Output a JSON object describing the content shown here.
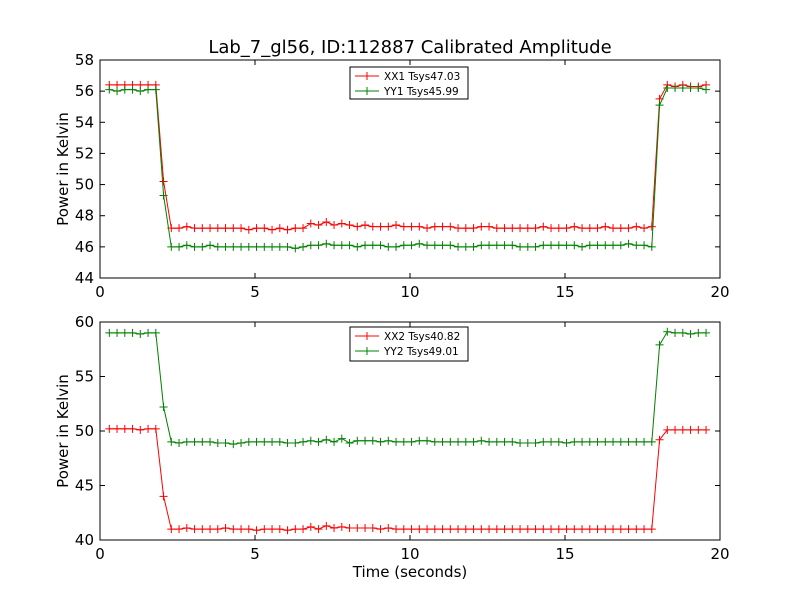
{
  "title": "Lab_7_gl56, ID:112887 Calibrated Amplitude",
  "xlabel": "Time (seconds)",
  "chart_data": [
    {
      "type": "line",
      "title": "Lab_7_gl56, ID:112887 Calibrated Amplitude",
      "xlabel": "",
      "ylabel": "Power in Kelvin",
      "xlim": [
        0,
        20
      ],
      "ylim": [
        44,
        58
      ],
      "xticks": [
        0,
        5,
        10,
        15,
        20
      ],
      "yticks": [
        44,
        46,
        48,
        50,
        52,
        54,
        56,
        58
      ],
      "grid": false,
      "legend": "top-center",
      "x": [
        0.3,
        0.55,
        0.8,
        1.05,
        1.3,
        1.55,
        1.8,
        2.05,
        2.3,
        2.55,
        2.8,
        3.05,
        3.3,
        3.55,
        3.8,
        4.05,
        4.3,
        4.55,
        4.8,
        5.05,
        5.3,
        5.55,
        5.8,
        6.05,
        6.3,
        6.55,
        6.8,
        7.05,
        7.3,
        7.55,
        7.8,
        8.05,
        8.3,
        8.55,
        8.8,
        9.05,
        9.3,
        9.55,
        9.8,
        10.05,
        10.3,
        10.55,
        10.8,
        11.05,
        11.3,
        11.55,
        11.8,
        12.05,
        12.3,
        12.55,
        12.8,
        13.05,
        13.3,
        13.55,
        13.8,
        14.05,
        14.3,
        14.55,
        14.8,
        15.05,
        15.3,
        15.55,
        15.8,
        16.05,
        16.3,
        16.55,
        16.8,
        17.05,
        17.3,
        17.55,
        17.8,
        18.05,
        18.3,
        18.55,
        18.8,
        19.05,
        19.3,
        19.55
      ],
      "series": [
        {
          "name": "XX1 Tsys47.03",
          "color": "#ff0000",
          "values": [
            56.4,
            56.4,
            56.4,
            56.4,
            56.4,
            56.4,
            56.4,
            50.2,
            47.2,
            47.2,
            47.3,
            47.2,
            47.2,
            47.2,
            47.2,
            47.2,
            47.2,
            47.2,
            47.1,
            47.2,
            47.2,
            47.1,
            47.2,
            47.1,
            47.2,
            47.2,
            47.5,
            47.4,
            47.6,
            47.4,
            47.5,
            47.4,
            47.3,
            47.4,
            47.3,
            47.3,
            47.3,
            47.4,
            47.3,
            47.3,
            47.3,
            47.2,
            47.3,
            47.3,
            47.3,
            47.2,
            47.2,
            47.2,
            47.3,
            47.3,
            47.2,
            47.2,
            47.2,
            47.2,
            47.2,
            47.2,
            47.3,
            47.2,
            47.2,
            47.2,
            47.3,
            47.2,
            47.2,
            47.2,
            47.3,
            47.2,
            47.2,
            47.2,
            47.3,
            47.2,
            47.3,
            55.5,
            56.4,
            56.3,
            56.4,
            56.3,
            56.3,
            56.4
          ]
        },
        {
          "name": "YY1 Tsys45.99",
          "color": "#008000",
          "values": [
            56.1,
            56.0,
            56.1,
            56.1,
            56.0,
            56.1,
            56.1,
            49.3,
            46.0,
            46.0,
            46.1,
            46.0,
            46.0,
            46.1,
            46.0,
            46.0,
            46.0,
            46.0,
            46.0,
            46.0,
            46.0,
            46.0,
            46.0,
            46.0,
            45.9,
            46.0,
            46.1,
            46.1,
            46.2,
            46.1,
            46.1,
            46.1,
            46.0,
            46.1,
            46.1,
            46.1,
            46.0,
            46.0,
            46.1,
            46.1,
            46.2,
            46.1,
            46.1,
            46.1,
            46.1,
            46.0,
            46.0,
            46.0,
            46.1,
            46.1,
            46.1,
            46.1,
            46.1,
            46.0,
            46.0,
            46.0,
            46.1,
            46.1,
            46.1,
            46.1,
            46.1,
            46.0,
            46.1,
            46.1,
            46.1,
            46.1,
            46.1,
            46.2,
            46.1,
            46.1,
            46.0,
            55.1,
            56.2,
            56.2,
            56.2,
            56.2,
            56.2,
            56.1
          ]
        }
      ]
    },
    {
      "type": "line",
      "title": "",
      "xlabel": "Time (seconds)",
      "ylabel": "Power in Kelvin",
      "xlim": [
        0,
        20
      ],
      "ylim": [
        40,
        60
      ],
      "xticks": [
        0,
        5,
        10,
        15,
        20
      ],
      "yticks": [
        40,
        45,
        50,
        55,
        60
      ],
      "grid": false,
      "legend": "top-center",
      "x": [
        0.3,
        0.55,
        0.8,
        1.05,
        1.3,
        1.55,
        1.8,
        2.05,
        2.3,
        2.55,
        2.8,
        3.05,
        3.3,
        3.55,
        3.8,
        4.05,
        4.3,
        4.55,
        4.8,
        5.05,
        5.3,
        5.55,
        5.8,
        6.05,
        6.3,
        6.55,
        6.8,
        7.05,
        7.3,
        7.55,
        7.8,
        8.05,
        8.3,
        8.55,
        8.8,
        9.05,
        9.3,
        9.55,
        9.8,
        10.05,
        10.3,
        10.55,
        10.8,
        11.05,
        11.3,
        11.55,
        11.8,
        12.05,
        12.3,
        12.55,
        12.8,
        13.05,
        13.3,
        13.55,
        13.8,
        14.05,
        14.3,
        14.55,
        14.8,
        15.05,
        15.3,
        15.55,
        15.8,
        16.05,
        16.3,
        16.55,
        16.8,
        17.05,
        17.3,
        17.55,
        17.8,
        18.05,
        18.3,
        18.55,
        18.8,
        19.05,
        19.3,
        19.55
      ],
      "series": [
        {
          "name": "XX2 Tsys40.82",
          "color": "#ff0000",
          "values": [
            50.2,
            50.2,
            50.2,
            50.2,
            50.1,
            50.2,
            50.2,
            44.0,
            41.0,
            41.0,
            41.1,
            41.0,
            41.0,
            41.0,
            41.0,
            41.1,
            41.0,
            41.0,
            41.0,
            40.9,
            41.0,
            41.0,
            41.0,
            40.9,
            41.0,
            41.0,
            41.2,
            41.0,
            41.3,
            41.1,
            41.2,
            41.1,
            41.1,
            41.1,
            41.1,
            41.0,
            41.1,
            41.0,
            41.0,
            41.0,
            41.0,
            41.0,
            41.0,
            41.0,
            41.0,
            41.0,
            41.0,
            41.0,
            41.0,
            41.0,
            41.0,
            41.0,
            41.0,
            41.0,
            41.0,
            41.0,
            41.0,
            41.0,
            41.0,
            41.0,
            41.0,
            41.0,
            41.0,
            41.0,
            41.0,
            41.0,
            41.0,
            41.0,
            41.0,
            41.0,
            41.0,
            49.2,
            50.1,
            50.1,
            50.1,
            50.1,
            50.1,
            50.1
          ]
        },
        {
          "name": "YY2 Tsys49.01",
          "color": "#008000",
          "values": [
            59.0,
            59.0,
            59.0,
            59.0,
            58.9,
            59.0,
            59.0,
            52.2,
            49.0,
            48.9,
            49.0,
            49.0,
            49.0,
            49.0,
            48.9,
            48.9,
            48.8,
            48.9,
            49.0,
            49.0,
            49.0,
            49.0,
            49.0,
            48.9,
            48.9,
            49.0,
            49.1,
            49.0,
            49.2,
            49.0,
            49.3,
            48.9,
            49.1,
            49.1,
            49.1,
            49.0,
            49.1,
            49.0,
            49.0,
            49.0,
            49.1,
            49.1,
            49.0,
            49.0,
            49.0,
            49.0,
            49.0,
            49.0,
            49.1,
            49.0,
            49.0,
            49.0,
            49.0,
            48.9,
            48.9,
            48.9,
            49.0,
            49.0,
            49.0,
            48.9,
            49.0,
            49.0,
            49.0,
            49.0,
            49.0,
            49.0,
            49.0,
            49.0,
            49.0,
            49.0,
            49.0,
            57.9,
            59.1,
            59.0,
            59.0,
            58.9,
            59.0,
            59.0
          ]
        }
      ]
    }
  ]
}
